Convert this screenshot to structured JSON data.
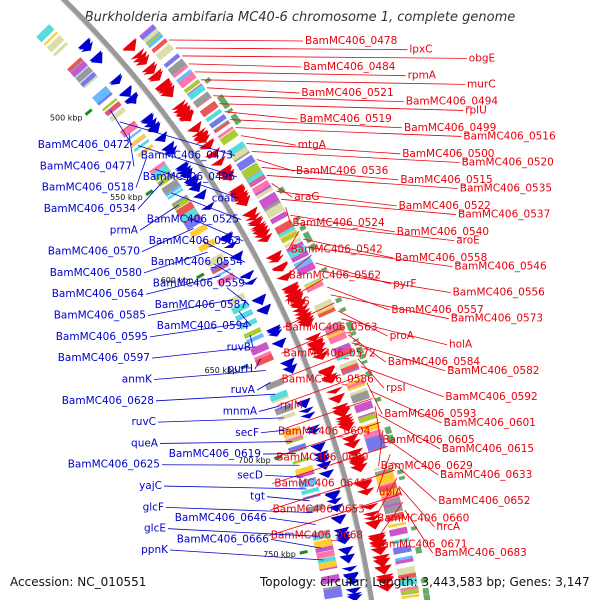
{
  "title": "Burkholderia ambifaria MC40-6 chromosome 1, complete genome",
  "footer": {
    "accession": "Accession: NC_010551",
    "topology": "Topology: circular; Length: 3,443,583 bp; Genes: 3,147"
  },
  "ticks": [
    "500 kbp",
    "550 kbp",
    "600 kbp",
    "650 kbp",
    "700 kbp",
    "750 kbp"
  ],
  "colors": {
    "forward": "#e8000b",
    "reverse": "#0000cc",
    "backbone": "#999999",
    "tick_mark": "#1a8c1a"
  },
  "right_labels": [
    "BamMC406_0478",
    "lpxC",
    "obgE",
    "BamMC406_0484",
    "rpmA",
    "murC",
    "BamMC406_0521",
    "BamMC406_0494",
    "rplU",
    "BamMC406_0519",
    "BamMC406_0499",
    "BamMC406_0516",
    "mtgA",
    "BamMC406_0500",
    "BamMC406_0520",
    "BamMC406_0536",
    "BamMC406_0515",
    "BamMC406_0535",
    "araG",
    "BamMC406_0522",
    "BamMC406_0537",
    "BamMC406_0524",
    "BamMC406_0540",
    "aroE",
    "BamMC406_0542",
    "BamMC406_0558",
    "BamMC406_0546",
    "BamMC406_0562",
    "pyrF",
    "BamMC406_0556",
    "leuS",
    "BamMC406_0557",
    "BamMC406_0573",
    "BamMC406_0563",
    "proA",
    "holA",
    "BamMC406_0572",
    "BamMC406_0584",
    "BamMC406_0582",
    "BamMC406_0586",
    "rpsI",
    "BamMC406_0592",
    "rplM",
    "BamMC406_0593",
    "BamMC406_0601",
    "BamMC406_0604",
    "BamMC406_0605",
    "BamMC406_0615",
    "BamMC406_0620",
    "BamMC406_0629",
    "BamMC406_0633",
    "BamMC406_0641",
    "ubiA",
    "BamMC406_0652",
    "BamMC406_0653",
    "BamMC406_0660",
    "hrcA",
    "BamMC406_0668",
    "BamMC406_0671",
    "BamMC406_0683"
  ],
  "left_labels": [
    "BamMC406_0472",
    "BamMC406_0473",
    "BamMC406_0477",
    "BamMC406_0496",
    "BamMC406_0518",
    "coaE",
    "BamMC406_0534",
    "BamMC406_0525",
    "prmA",
    "BamMC406_0553",
    "BamMC406_0570",
    "BamMC406_0554",
    "BamMC406_0580",
    "BamMC406_0559",
    "BamMC406_0564",
    "BamMC406_0587",
    "BamMC406_0585",
    "BamMC406_0594",
    "BamMC406_0595",
    "ruvB",
    "BamMC406_0597",
    "purH",
    "anmK",
    "ruvA",
    "BamMC406_0628",
    "mnmA",
    "ruvC",
    "secF",
    "queA",
    "BamMC406_0619",
    "BamMC406_0625",
    "secD",
    "yajC",
    "tgt",
    "glcF",
    "BamMC406_0646",
    "glcE",
    "BamMC406_0666",
    "ppnK"
  ]
}
